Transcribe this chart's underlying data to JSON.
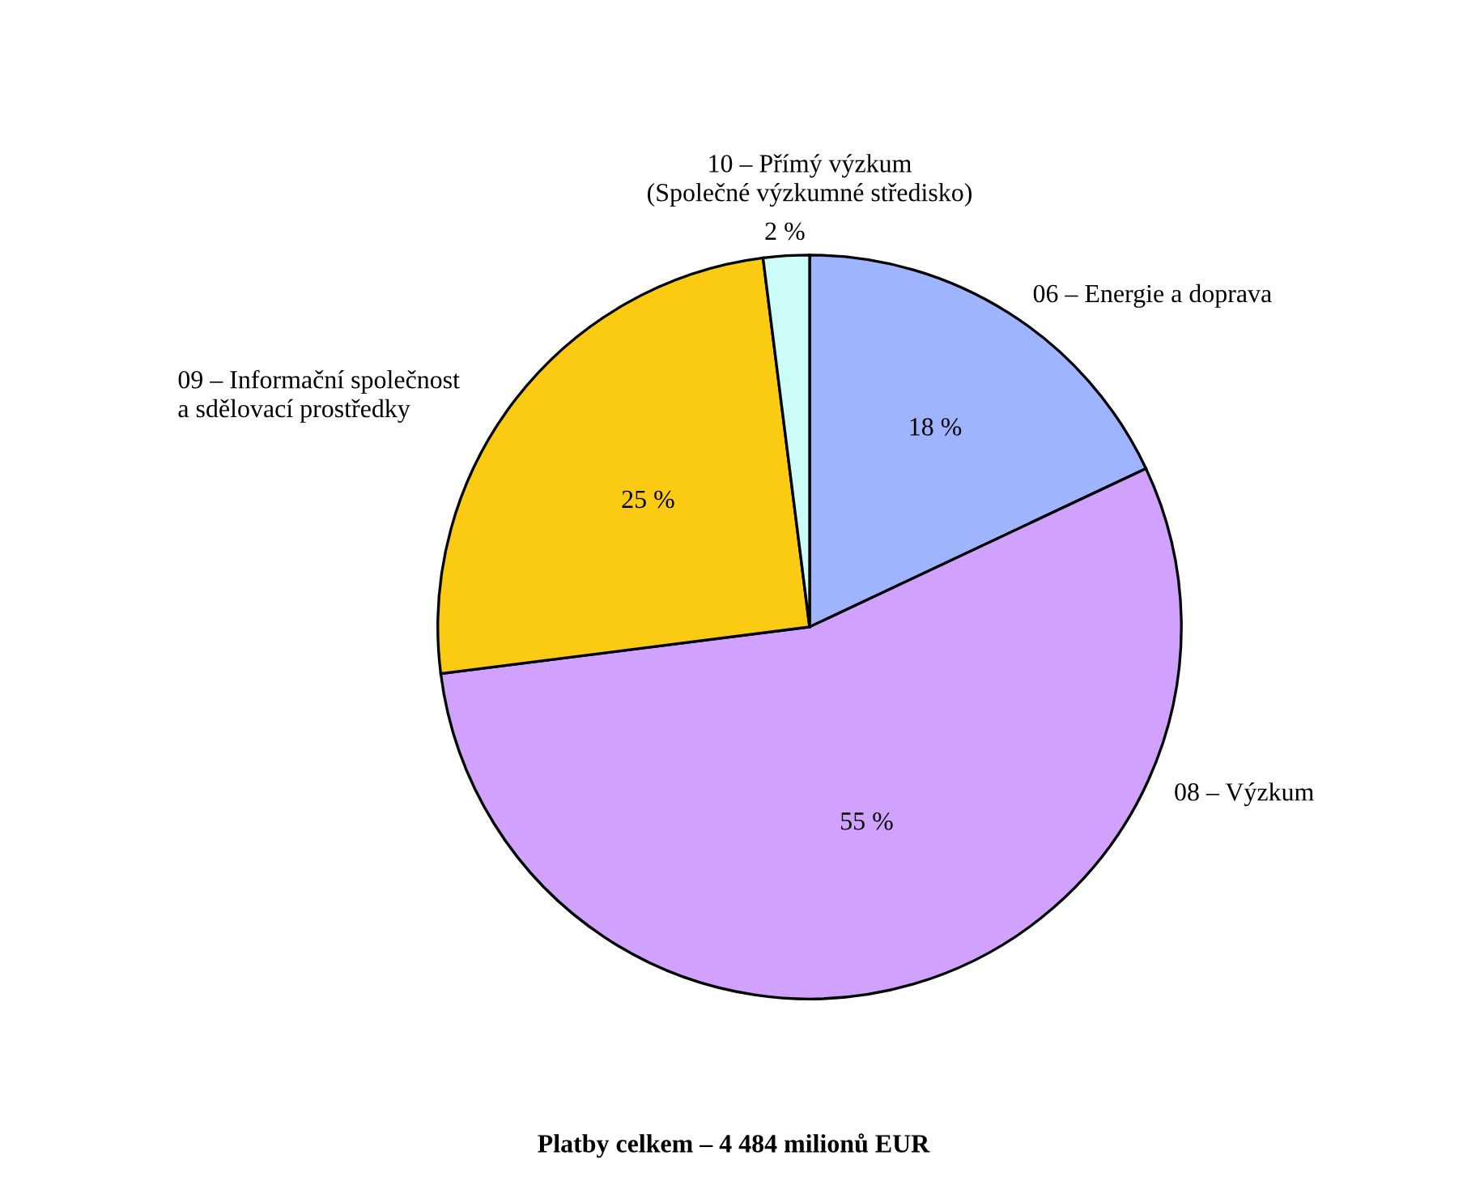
{
  "chart_data": {
    "type": "pie",
    "categories": [
      "06 – Energie a doprava",
      "08 – Výzkum",
      "09 – Informační společnost\na sdělovací prostředky",
      "10 – Přímý výzkum\n(Společné výzkumné středisko)"
    ],
    "values": [
      18,
      55,
      25,
      2
    ],
    "value_labels": [
      "18 %",
      "55 %",
      "25 %",
      "2 %"
    ],
    "colors": [
      "#9fb4fe",
      "#d0a2fe",
      "#fbca12",
      "#ccfcf8"
    ],
    "annotations": [
      "Platby celkem – 4 484 milionů EUR"
    ]
  }
}
